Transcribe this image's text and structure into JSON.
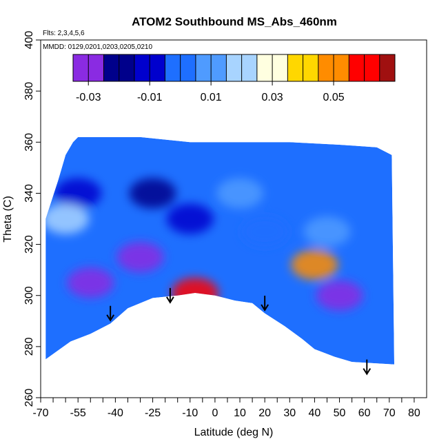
{
  "chart_data": {
    "type": "heatmap",
    "title": "ATOM2 Southbound MS_Abs_460nm",
    "annotations": {
      "flights": "Flts: 2,3,4,5,6",
      "dates": "MMDD: 0129,0201,0203,0205,0210"
    },
    "xlabel": "Latitude (deg N)",
    "ylabel": "Theta (C)",
    "xlim": [
      -70,
      85
    ],
    "ylim": [
      260,
      400
    ],
    "x_ticks": [
      -70,
      -65,
      -60,
      -55,
      -50,
      -45,
      -40,
      -35,
      -30,
      -25,
      -20,
      -15,
      -10,
      -5,
      0,
      5,
      10,
      15,
      20,
      25,
      30,
      35,
      40,
      45,
      50,
      55,
      60,
      65,
      70,
      75,
      80
    ],
    "x_tick_labels": [
      "-70",
      "-55",
      "-40",
      "-25",
      "-10",
      "0",
      "10",
      "20",
      "30",
      "40",
      "50",
      "60",
      "70",
      "80"
    ],
    "x_label_positions": [
      -70,
      -55,
      -40,
      -25,
      -10,
      0,
      10,
      20,
      30,
      40,
      50,
      60,
      70,
      80
    ],
    "y_ticks": [
      260,
      280,
      300,
      320,
      340,
      360,
      380,
      400
    ],
    "y_tick_labels": [
      "260",
      "280",
      "300",
      "320",
      "340",
      "360",
      "380",
      "400"
    ],
    "colorbar": {
      "range": [
        -0.035,
        0.07
      ],
      "boundaries": [
        -0.035,
        -0.03,
        -0.025,
        -0.02,
        -0.015,
        -0.01,
        -0.005,
        0,
        0.005,
        0.01,
        0.015,
        0.02,
        0.025,
        0.03,
        0.035,
        0.04,
        0.045,
        0.05,
        0.055,
        0.06,
        0.065,
        0.07
      ],
      "tick_values": [
        -0.03,
        -0.01,
        0.01,
        0.03,
        0.05
      ],
      "tick_labels": [
        "-0.03",
        "-0.01",
        "0.01",
        "0.03",
        "0.05"
      ],
      "colors": [
        "#8a2be2",
        "#00008b",
        "#0000cd",
        "#1e6fff",
        "#4f9bff",
        "#a8d4ff",
        "#ffffe0",
        "#ffd700",
        "#ff8c00",
        "#ff0000",
        "#a01010"
      ]
    },
    "data_envelope_top": [
      [
        -68,
        330
      ],
      [
        -63,
        345
      ],
      [
        -60,
        355
      ],
      [
        -57,
        360
      ],
      [
        -55,
        362
      ],
      [
        -30,
        362
      ],
      [
        -10,
        360
      ],
      [
        10,
        360
      ],
      [
        30,
        360
      ],
      [
        50,
        359
      ],
      [
        65,
        358
      ],
      [
        71,
        355
      ]
    ],
    "data_envelope_bottom": [
      [
        -68,
        275
      ],
      [
        -58,
        282
      ],
      [
        -50,
        285
      ],
      [
        -42,
        289
      ],
      [
        -35,
        295
      ],
      [
        -25,
        299
      ],
      [
        -15,
        300
      ],
      [
        -8,
        301
      ],
      [
        0,
        300
      ],
      [
        8,
        298
      ],
      [
        15,
        297
      ],
      [
        20,
        293
      ],
      [
        28,
        288
      ],
      [
        35,
        283
      ],
      [
        40,
        279
      ],
      [
        48,
        276
      ],
      [
        55,
        274
      ],
      [
        72,
        273
      ]
    ],
    "features": [
      {
        "lat": -30,
        "theta": 315,
        "value": -0.028
      },
      {
        "lat": -25,
        "theta": 340,
        "value": -0.025
      },
      {
        "lat": -10,
        "theta": 330,
        "value": -0.012
      },
      {
        "lat": 10,
        "theta": 340,
        "value": 0.005
      },
      {
        "lat": 20,
        "theta": 325,
        "value": 0.002
      },
      {
        "lat": 45,
        "theta": 325,
        "value": 0.01
      },
      {
        "lat": -50,
        "theta": 305,
        "value": -0.03
      },
      {
        "lat": 50,
        "theta": 300,
        "value": -0.032
      },
      {
        "lat": -55,
        "theta": 340,
        "value": -0.015
      },
      {
        "lat": -8,
        "theta": 301,
        "value": 0.06
      },
      {
        "lat": 40,
        "theta": 312,
        "value": 0.045
      },
      {
        "lat": -60,
        "theta": 330,
        "value": 0.015
      }
    ],
    "arrows": [
      [
        -42,
        290
      ],
      [
        -18,
        297
      ],
      [
        20,
        294
      ],
      [
        61,
        269
      ]
    ]
  }
}
